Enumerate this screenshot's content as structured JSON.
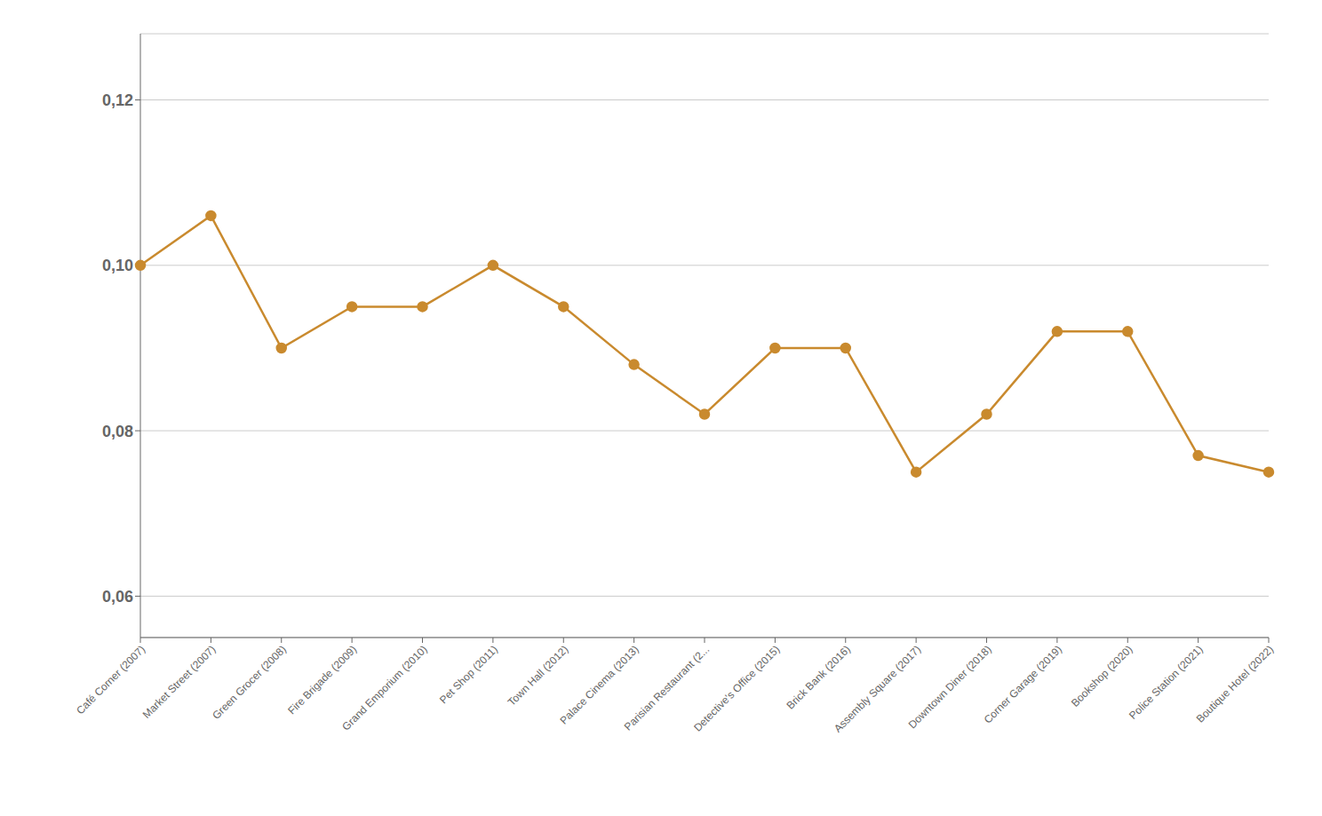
{
  "chart_data": {
    "type": "line",
    "categories": [
      "Café Corner (2007)",
      "Market Street (2007)",
      "Green Grocer (2008)",
      "Fire Brigade (2009)",
      "Grand Emporium (2010)",
      "Pet Shop (2011)",
      "Town Hall (2012)",
      "Palace Cinema (2013)",
      "Parisian Restaurant (2...",
      "Detective's Office (2015)",
      "Brick Bank (2016)",
      "Assembly Square (2017)",
      "Downtown Diner (2018)",
      "Corner Garage (2019)",
      "Bookshop (2020)",
      "Police Station (2021)",
      "Boutique Hotel (2022)"
    ],
    "values": [
      0.1,
      0.106,
      0.09,
      0.095,
      0.095,
      0.1,
      0.095,
      0.088,
      0.082,
      0.09,
      0.09,
      0.075,
      0.082,
      0.092,
      0.092,
      0.077,
      0.075
    ],
    "color": "#C98A2E",
    "marker": "circle",
    "ylim": [
      0.055,
      0.128
    ],
    "yticks": [
      {
        "value": 0.06,
        "label": "0,06"
      },
      {
        "value": 0.08,
        "label": "0,08"
      },
      {
        "value": 0.1,
        "label": "0,10"
      },
      {
        "value": 0.12,
        "label": "0,12"
      }
    ],
    "grid": true
  }
}
